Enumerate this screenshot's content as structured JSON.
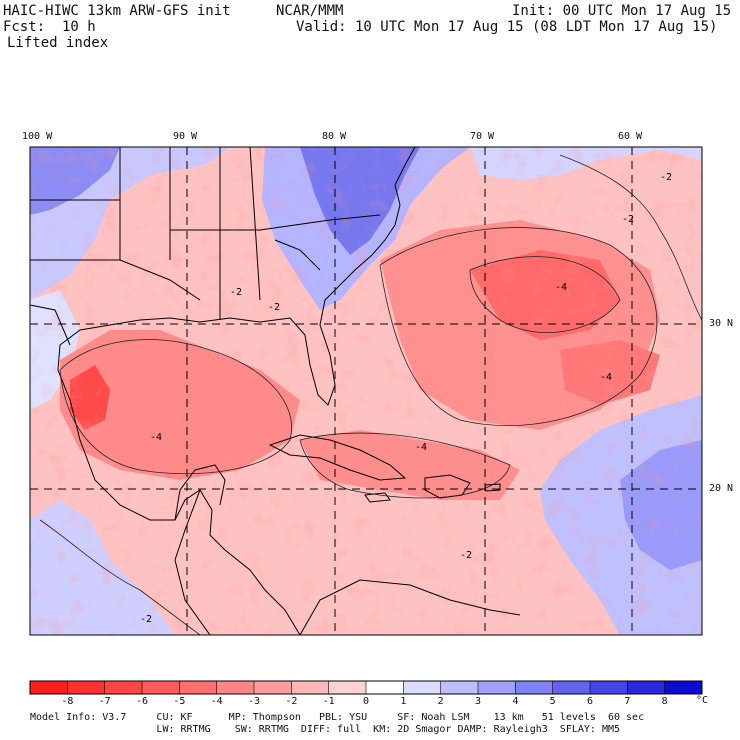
{
  "header": {
    "model": "HAIC-HIWC 13km ARW-GFS init",
    "org": "NCAR/MMM",
    "init": "Init: 00 UTC Mon 17 Aug 15",
    "fcst": "Fcst:  10 h",
    "valid": "Valid: 10 UTC Mon 17 Aug 15 (08 LDT Mon 17 Aug 15)",
    "field": "Lifted index"
  },
  "lon_labels": [
    "100 W",
    "90 W",
    "80 W",
    "70 W",
    "60 W"
  ],
  "lat_labels": [
    "30 N",
    "20 N"
  ],
  "contour_labels": [
    "-2",
    "-2",
    "-2",
    "-2",
    "-4",
    "-4",
    "-4",
    "-2",
    "-2",
    "-4"
  ],
  "colorbar": {
    "ticks": [
      "-8",
      "-7",
      "-6",
      "-5",
      "-4",
      "-3",
      "-2",
      "-1",
      "0",
      "1",
      "2",
      "3",
      "4",
      "5",
      "6",
      "7",
      "8"
    ],
    "unit": "°C",
    "colors": [
      "#ff1e1e",
      "#ff3232",
      "#ff4646",
      "#ff5a5a",
      "#ff7070",
      "#ff8686",
      "#ff9c9c",
      "#ffb6b6",
      "#ffd2d2",
      "#ffffff",
      "#dcdcff",
      "#bebeff",
      "#a0a0ff",
      "#8282f8",
      "#6464f0",
      "#4646e6",
      "#2828dc",
      "#0a0ad0"
    ]
  },
  "model_info": {
    "line1": "Model Info: V3.7     CU: KF      MP: Thompson   PBL: YSU     SF: Noah LSM    13 km   51 levels  60 sec",
    "line2": "                     LW: RRTMG    SW: RRTMG  DIFF: full  KM: 2D Smagor DAMP: Rayleigh3  SFLAY: MM5"
  }
}
